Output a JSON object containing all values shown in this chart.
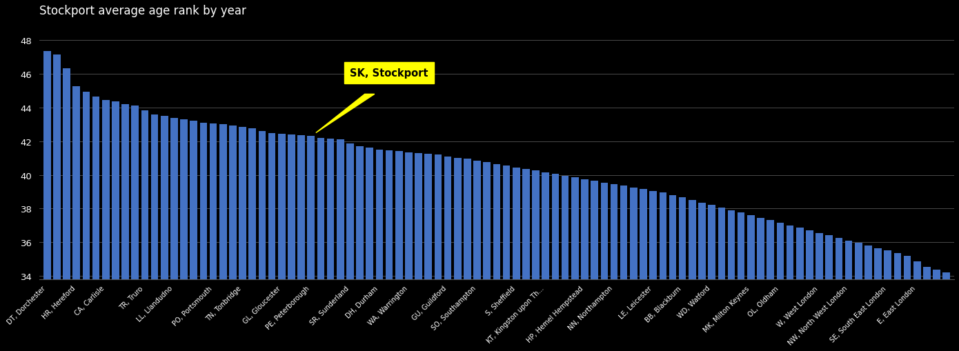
{
  "title": "Stockport average age rank by year",
  "background_color": "#000000",
  "bar_color": "#4472c4",
  "text_color": "#ffffff",
  "grid_color": "#555555",
  "annotation_bg": "#ffff00",
  "stockport_label": "SK, Stockport",
  "stockport_avg": 42.3,
  "ylim": [
    33.8,
    49.0
  ],
  "yticks": [
    34,
    36,
    38,
    40,
    42,
    44,
    46,
    48
  ],
  "values": [
    47.35,
    47.15,
    46.35,
    45.25,
    44.95,
    44.65,
    44.45,
    44.35,
    44.2,
    44.1,
    43.85,
    43.6,
    43.5,
    43.4,
    43.3,
    43.2,
    43.1,
    43.05,
    43.0,
    42.95,
    42.85,
    42.75,
    42.6,
    42.5,
    42.45,
    42.4,
    42.35,
    42.3,
    42.2,
    42.15,
    42.1,
    41.85,
    41.7,
    41.6,
    41.5,
    41.45,
    41.4,
    41.35,
    41.3,
    41.25,
    41.2,
    41.1,
    41.0,
    40.95,
    40.85,
    40.75,
    40.65,
    40.55,
    40.45,
    40.35,
    40.25,
    40.15,
    40.05,
    39.95,
    39.85,
    39.75,
    39.65,
    39.55,
    39.45,
    39.35,
    39.25,
    39.15,
    39.05,
    38.95,
    38.8,
    38.65,
    38.5,
    38.35,
    38.2,
    38.05,
    37.9,
    37.75,
    37.6,
    37.45,
    37.3,
    37.15,
    37.0,
    36.85,
    36.7,
    36.55,
    36.4,
    36.25,
    36.1,
    35.95,
    35.8,
    35.65,
    35.5,
    35.35,
    35.2,
    34.85,
    34.55,
    34.35,
    34.2
  ],
  "stockport_idx": 27,
  "tick_labels": [
    "DT, Dorchester",
    "HR, Hereford",
    "CA, Carlisle",
    "TR, Truro",
    "LL, Llandudno",
    "PO, Portsmouth",
    "TN, Tonbridge",
    "GL, Gloucester",
    "PE, Peterborough",
    "SR, Sunderland",
    "DH, Durham",
    "WA, Warrington",
    "GU, Guildford",
    "SO, Southampton",
    "S, Sheffield",
    "KT, Kingston upon Th...",
    "HP, Hemel Hempstead",
    "NN, Northampton",
    "LE, Leicester",
    "BB, Blackburn",
    "WD, Watford",
    "MK, Milton Keynes",
    "OL, Oldham",
    "W, West London",
    "NW, North West London",
    "SE, South East London",
    "E, East London"
  ],
  "figsize": [
    13.9,
    5.1
  ]
}
